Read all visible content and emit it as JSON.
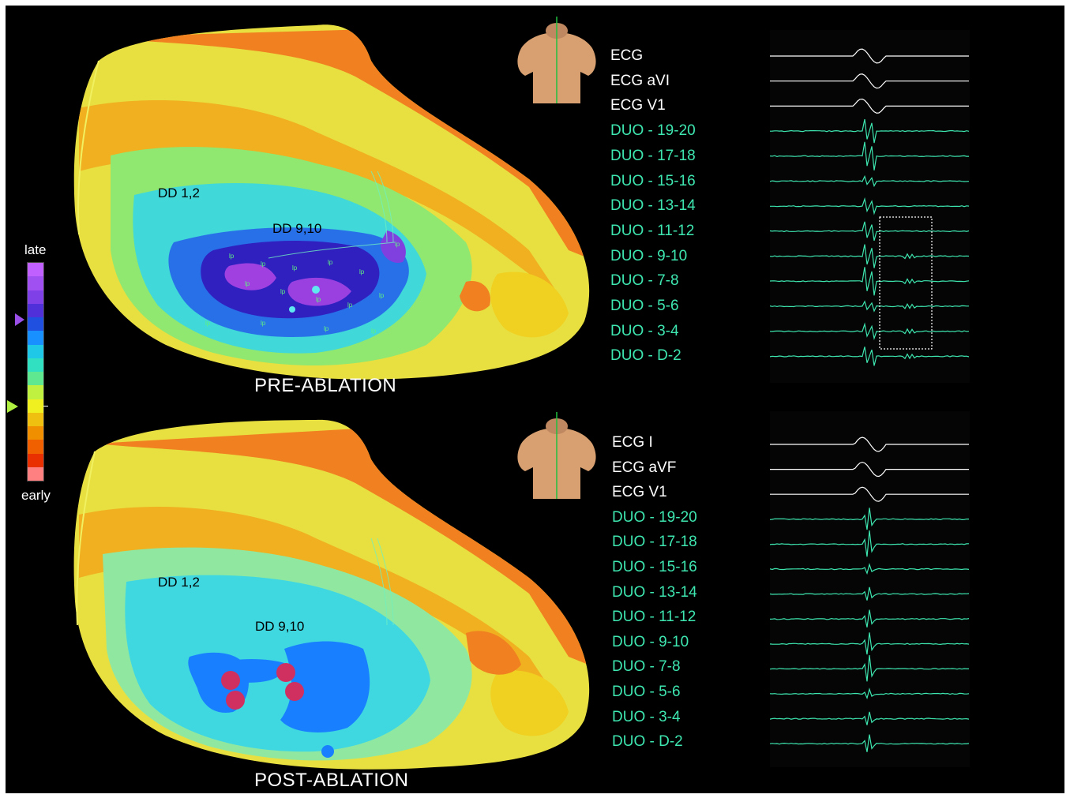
{
  "scale": {
    "top_label": "late",
    "bottom_label": "early",
    "colors": [
      "#c060ff",
      "#a050f0",
      "#8040e8",
      "#5030d8",
      "#2050e0",
      "#1890ff",
      "#20c8e8",
      "#30e0c0",
      "#60e890",
      "#c0f040",
      "#f0f020",
      "#f0c010",
      "#f09000",
      "#f06000",
      "#e83000",
      "#ff8080"
    ]
  },
  "panels": {
    "pre": {
      "caption": "PRE-ABLATION",
      "label_dd12": "DD 1,2",
      "label_dd910": "DD 9,10",
      "lp_marker": "lp"
    },
    "post": {
      "caption": "POST-ABLATION",
      "label_dd12": "DD 1,2",
      "label_dd910": "DD 9,10"
    }
  },
  "channels_top": [
    {
      "name": "ECG",
      "kind": "ecg"
    },
    {
      "name": "ECG aVI",
      "kind": "ecg"
    },
    {
      "name": "ECG V1",
      "kind": "ecg"
    },
    {
      "name": "DUO - 19-20",
      "kind": "duo"
    },
    {
      "name": "DUO - 17-18",
      "kind": "duo"
    },
    {
      "name": "DUO - 15-16",
      "kind": "duo"
    },
    {
      "name": "DUO - 13-14",
      "kind": "duo"
    },
    {
      "name": "DUO - 11-12",
      "kind": "duo"
    },
    {
      "name": "DUO - 9-10",
      "kind": "duo"
    },
    {
      "name": "DUO - 7-8",
      "kind": "duo"
    },
    {
      "name": "DUO - 5-6",
      "kind": "duo"
    },
    {
      "name": "DUO - 3-4",
      "kind": "duo"
    },
    {
      "name": "DUO - D-2",
      "kind": "duo"
    }
  ],
  "channels_bottom": [
    {
      "name": "ECG I",
      "kind": "ecg"
    },
    {
      "name": "ECG aVF",
      "kind": "ecg"
    },
    {
      "name": "ECG V1",
      "kind": "ecg"
    },
    {
      "name": "DUO - 19-20",
      "kind": "duo"
    },
    {
      "name": "DUO - 17-18",
      "kind": "duo"
    },
    {
      "name": "DUO - 15-16",
      "kind": "duo"
    },
    {
      "name": "DUO - 13-14",
      "kind": "duo"
    },
    {
      "name": "DUO - 11-12",
      "kind": "duo"
    },
    {
      "name": "DUO - 9-10",
      "kind": "duo"
    },
    {
      "name": "DUO - 7-8",
      "kind": "duo"
    },
    {
      "name": "DUO - 5-6",
      "kind": "duo"
    },
    {
      "name": "DUO - 3-4",
      "kind": "duo"
    },
    {
      "name": "DUO - D-2",
      "kind": "duo"
    }
  ],
  "trace_colors": {
    "ecg": "#ffffff",
    "duo": "#3ee6b0",
    "highlight_box": "#ffffff"
  },
  "ablation_lesion_color": "#d03060"
}
